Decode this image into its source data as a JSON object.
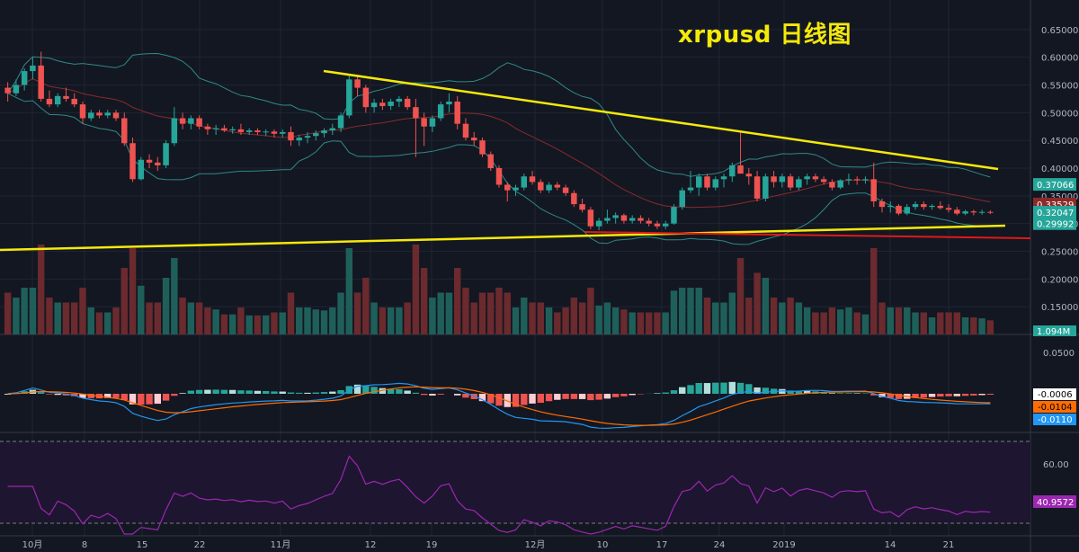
{
  "title": "xrpusd 日线图",
  "colors": {
    "background": "#131722",
    "up": "#26a69a",
    "down": "#ef5350",
    "trendline": "#f5e90a",
    "support_red": "#e01919",
    "bb": "#2e8a86",
    "ma_mid": "#8b2a2a",
    "macd": "#2196f3",
    "signal": "#ff6d00",
    "rsi": "#9c27b0",
    "rsi_fill": "#1e1530"
  },
  "chart_data": [
    {
      "type": "candlestick",
      "title": "xrpusd 日线图",
      "ylim": [
        0.1,
        0.7
      ],
      "y_ticks": [
        "0.15000",
        "0.20000",
        "0.25000",
        "0.30000",
        "0.35000",
        "0.40000",
        "0.45000",
        "0.50000",
        "0.55000",
        "0.60000",
        "0.65000"
      ],
      "x_ticks": [
        "10月",
        "8",
        "15",
        "22",
        "11月",
        "12",
        "19",
        "12月",
        "10",
        "17",
        "24",
        "2019",
        "14",
        "21"
      ],
      "price_tags": [
        {
          "label": "0.37066",
          "value": 0.37066,
          "color": "#26a69a"
        },
        {
          "label": "0.33529",
          "value": 0.33529,
          "color": "#8b2a2a"
        },
        {
          "label": "0.32047",
          "value": 0.32047,
          "color": "#26a69a"
        },
        {
          "label": "0.29992",
          "value": 0.29992,
          "color": "#26a69a"
        }
      ],
      "volume_tag": "1.094M",
      "candles": [
        [
          0.545,
          0.555,
          0.52,
          0.535
        ],
        [
          0.535,
          0.56,
          0.53,
          0.55
        ],
        [
          0.55,
          0.58,
          0.54,
          0.575
        ],
        [
          0.575,
          0.6,
          0.56,
          0.585
        ],
        [
          0.585,
          0.61,
          0.52,
          0.525
        ],
        [
          0.525,
          0.54,
          0.51,
          0.515
        ],
        [
          0.515,
          0.535,
          0.51,
          0.53
        ],
        [
          0.53,
          0.545,
          0.52,
          0.525
        ],
        [
          0.525,
          0.535,
          0.51,
          0.515
        ],
        [
          0.515,
          0.52,
          0.48,
          0.49
        ],
        [
          0.49,
          0.505,
          0.485,
          0.5
        ],
        [
          0.5,
          0.505,
          0.49,
          0.495
        ],
        [
          0.495,
          0.505,
          0.49,
          0.5
        ],
        [
          0.5,
          0.505,
          0.485,
          0.49
        ],
        [
          0.49,
          0.5,
          0.44,
          0.445
        ],
        [
          0.445,
          0.455,
          0.375,
          0.38
        ],
        [
          0.38,
          0.42,
          0.378,
          0.415
        ],
        [
          0.415,
          0.425,
          0.4,
          0.41
        ],
        [
          0.41,
          0.42,
          0.395,
          0.405
        ],
        [
          0.405,
          0.45,
          0.4,
          0.445
        ],
        [
          0.445,
          0.51,
          0.44,
          0.49
        ],
        [
          0.49,
          0.5,
          0.47,
          0.48
        ],
        [
          0.48,
          0.495,
          0.47,
          0.49
        ],
        [
          0.49,
          0.495,
          0.47,
          0.475
        ],
        [
          0.475,
          0.48,
          0.46,
          0.47
        ],
        [
          0.47,
          0.478,
          0.46,
          0.472
        ],
        [
          0.472,
          0.478,
          0.465,
          0.468
        ],
        [
          0.468,
          0.475,
          0.462,
          0.47
        ],
        [
          0.47,
          0.48,
          0.46,
          0.465
        ],
        [
          0.465,
          0.472,
          0.46,
          0.468
        ],
        [
          0.468,
          0.472,
          0.46,
          0.465
        ],
        [
          0.465,
          0.47,
          0.458,
          0.466
        ],
        [
          0.466,
          0.47,
          0.455,
          0.462
        ],
        [
          0.462,
          0.47,
          0.455,
          0.465
        ],
        [
          0.465,
          0.475,
          0.44,
          0.45
        ],
        [
          0.45,
          0.46,
          0.44,
          0.455
        ],
        [
          0.455,
          0.465,
          0.445,
          0.458
        ],
        [
          0.458,
          0.468,
          0.45,
          0.463
        ],
        [
          0.463,
          0.472,
          0.455,
          0.468
        ],
        [
          0.468,
          0.48,
          0.46,
          0.472
        ],
        [
          0.472,
          0.5,
          0.465,
          0.495
        ],
        [
          0.495,
          0.57,
          0.49,
          0.56
        ],
        [
          0.56,
          0.565,
          0.53,
          0.545
        ],
        [
          0.545,
          0.55,
          0.5,
          0.51
        ],
        [
          0.51,
          0.525,
          0.5,
          0.518
        ],
        [
          0.518,
          0.525,
          0.505,
          0.512
        ],
        [
          0.512,
          0.525,
          0.505,
          0.52
        ],
        [
          0.52,
          0.53,
          0.51,
          0.525
        ],
        [
          0.525,
          0.53,
          0.505,
          0.51
        ],
        [
          0.51,
          0.525,
          0.42,
          0.49
        ],
        [
          0.49,
          0.5,
          0.44,
          0.475
        ],
        [
          0.475,
          0.495,
          0.465,
          0.49
        ],
        [
          0.49,
          0.52,
          0.485,
          0.515
        ],
        [
          0.515,
          0.535,
          0.5,
          0.52
        ],
        [
          0.52,
          0.53,
          0.47,
          0.48
        ],
        [
          0.48,
          0.49,
          0.45,
          0.455
        ],
        [
          0.455,
          0.465,
          0.44,
          0.45
        ],
        [
          0.45,
          0.455,
          0.42,
          0.425
        ],
        [
          0.425,
          0.43,
          0.395,
          0.4
        ],
        [
          0.4,
          0.405,
          0.365,
          0.37
        ],
        [
          0.37,
          0.375,
          0.34,
          0.36
        ],
        [
          0.36,
          0.37,
          0.35,
          0.365
        ],
        [
          0.365,
          0.39,
          0.36,
          0.385
        ],
        [
          0.385,
          0.395,
          0.37,
          0.375
        ],
        [
          0.375,
          0.38,
          0.355,
          0.36
        ],
        [
          0.36,
          0.375,
          0.355,
          0.37
        ],
        [
          0.37,
          0.375,
          0.36,
          0.365
        ],
        [
          0.365,
          0.37,
          0.35,
          0.355
        ],
        [
          0.355,
          0.36,
          0.33,
          0.335
        ],
        [
          0.335,
          0.345,
          0.32,
          0.325
        ],
        [
          0.325,
          0.33,
          0.29,
          0.295
        ],
        [
          0.295,
          0.31,
          0.288,
          0.305
        ],
        [
          0.305,
          0.325,
          0.3,
          0.31
        ],
        [
          0.31,
          0.32,
          0.3,
          0.315
        ],
        [
          0.315,
          0.318,
          0.3,
          0.305
        ],
        [
          0.305,
          0.315,
          0.3,
          0.31
        ],
        [
          0.31,
          0.315,
          0.3,
          0.305
        ],
        [
          0.305,
          0.31,
          0.295,
          0.3
        ],
        [
          0.3,
          0.305,
          0.29,
          0.295
        ],
        [
          0.295,
          0.305,
          0.29,
          0.3
        ],
        [
          0.3,
          0.335,
          0.298,
          0.33
        ],
        [
          0.33,
          0.365,
          0.325,
          0.36
        ],
        [
          0.36,
          0.395,
          0.355,
          0.365
        ],
        [
          0.365,
          0.39,
          0.35,
          0.385
        ],
        [
          0.385,
          0.39,
          0.36,
          0.365
        ],
        [
          0.365,
          0.385,
          0.36,
          0.38
        ],
        [
          0.38,
          0.39,
          0.365,
          0.385
        ],
        [
          0.385,
          0.41,
          0.375,
          0.405
        ],
        [
          0.405,
          0.465,
          0.395,
          0.39
        ],
        [
          0.39,
          0.4,
          0.37,
          0.385
        ],
        [
          0.385,
          0.395,
          0.34,
          0.345
        ],
        [
          0.345,
          0.39,
          0.34,
          0.385
        ],
        [
          0.385,
          0.395,
          0.365,
          0.375
        ],
        [
          0.375,
          0.39,
          0.365,
          0.385
        ],
        [
          0.385,
          0.39,
          0.36,
          0.365
        ],
        [
          0.365,
          0.385,
          0.36,
          0.38
        ],
        [
          0.38,
          0.39,
          0.37,
          0.385
        ],
        [
          0.385,
          0.39,
          0.375,
          0.38
        ],
        [
          0.38,
          0.385,
          0.37,
          0.375
        ],
        [
          0.375,
          0.38,
          0.36,
          0.365
        ],
        [
          0.365,
          0.38,
          0.362,
          0.378
        ],
        [
          0.378,
          0.39,
          0.37,
          0.38
        ],
        [
          0.38,
          0.385,
          0.37,
          0.378
        ],
        [
          0.378,
          0.385,
          0.372,
          0.38
        ],
        [
          0.38,
          0.41,
          0.33,
          0.34
        ],
        [
          0.34,
          0.345,
          0.32,
          0.33
        ],
        [
          0.33,
          0.34,
          0.32,
          0.332
        ],
        [
          0.332,
          0.335,
          0.315,
          0.318
        ],
        [
          0.318,
          0.335,
          0.315,
          0.33
        ],
        [
          0.33,
          0.34,
          0.325,
          0.335
        ],
        [
          0.335,
          0.34,
          0.325,
          0.33
        ],
        [
          0.33,
          0.335,
          0.325,
          0.332
        ],
        [
          0.332,
          0.34,
          0.325,
          0.328
        ],
        [
          0.328,
          0.335,
          0.32,
          0.325
        ],
        [
          0.325,
          0.33,
          0.315,
          0.318
        ],
        [
          0.318,
          0.325,
          0.315,
          0.322
        ],
        [
          0.322,
          0.325,
          0.315,
          0.32
        ],
        [
          0.32,
          0.325,
          0.316,
          0.321
        ],
        [
          0.321,
          0.324,
          0.317,
          0.32
        ]
      ],
      "volume_max": 1
    },
    {
      "type": "line",
      "name": "MACD",
      "ylim": [
        -0.02,
        0.06
      ],
      "y_ticks": [
        "0.0500"
      ],
      "value_tags": [
        {
          "label": "-0.0006",
          "color": "#ffffff",
          "text": "#000000"
        },
        {
          "label": "-0.0104",
          "color": "#ff6d00",
          "text": "#000000"
        },
        {
          "label": "-0.0110",
          "color": "#2196f3",
          "text": "#ffffff"
        }
      ]
    },
    {
      "type": "line",
      "name": "RSI",
      "ylim": [
        25,
        85
      ],
      "y_ticks": [
        "60.00"
      ],
      "value_tags": [
        {
          "label": "40.9572",
          "color": "#9c27b0",
          "text": "#ffffff"
        }
      ]
    }
  ]
}
